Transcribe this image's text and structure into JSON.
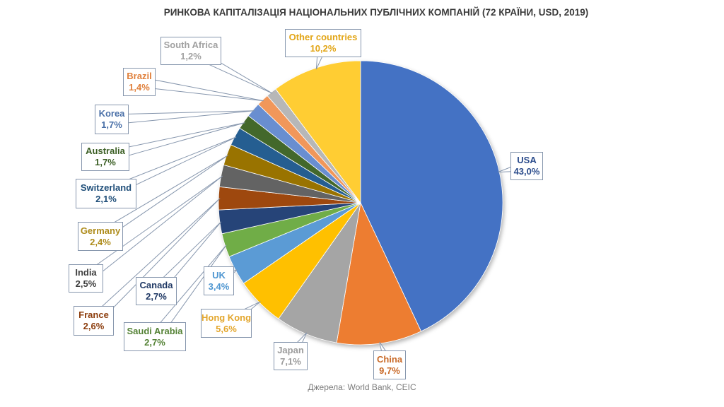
{
  "title": "РИНКОВА КАПІТАЛІЗАЦІЯ НАЦІОНАЛЬНИХ ПУБЛІЧНИХ КОМПАНІЙ (72 КРАЇНИ, USD, 2019)",
  "source": "Джерела: World Bank, CEIC",
  "chart_data": {
    "type": "pie",
    "title": "РИНКОВА КАПІТАЛІЗАЦІЯ НАЦІОНАЛЬНИХ ПУБЛІЧНИХ КОМПАНІЙ (72 КРАЇНИ, USD, 2019)",
    "source": "Джерела: World Bank, CEIC",
    "start_angle_deg": 0,
    "direction": "clockwise",
    "total": 100.0,
    "legend_position": "callout-labels",
    "slices": [
      {
        "label": "USA",
        "value": 43.0,
        "display": "43,0%",
        "color": "#4472C4",
        "text_color": "#2b4c8c"
      },
      {
        "label": "China",
        "value": 9.7,
        "display": "9,7%",
        "color": "#ED7D31",
        "text_color": "#c96a28"
      },
      {
        "label": "Japan",
        "value": 7.1,
        "display": "7,1%",
        "color": "#A5A5A5",
        "text_color": "#9b9b9b"
      },
      {
        "label": "Hong Kong",
        "value": 5.6,
        "display": "5,6%",
        "color": "#FFC000",
        "text_color": "#e3a62c"
      },
      {
        "label": "UK",
        "value": 3.4,
        "display": "3,4%",
        "color": "#5B9BD5",
        "text_color": "#4e96d1"
      },
      {
        "label": "Saudi Arabia",
        "value": 2.7,
        "display": "2,7%",
        "color": "#70AD47",
        "text_color": "#548235"
      },
      {
        "label": "Canada",
        "value": 2.7,
        "display": "2,7%",
        "color": "#264478",
        "text_color": "#1f3864"
      },
      {
        "label": "France",
        "value": 2.6,
        "display": "2,6%",
        "color": "#9E480E",
        "text_color": "#8c3d0d"
      },
      {
        "label": "India",
        "value": 2.5,
        "display": "2,5%",
        "color": "#636363",
        "text_color": "#3f3f3f"
      },
      {
        "label": "Germany",
        "value": 2.4,
        "display": "2,4%",
        "color": "#997300",
        "text_color": "#ae8c1c"
      },
      {
        "label": "Switzerland",
        "value": 2.1,
        "display": "2,1%",
        "color": "#255E91",
        "text_color": "#1f4e79"
      },
      {
        "label": "Australia",
        "value": 1.7,
        "display": "1,7%",
        "color": "#43682B",
        "text_color": "#3a5e23"
      },
      {
        "label": "Korea",
        "value": 1.7,
        "display": "1,7%",
        "color": "#698ED0",
        "text_color": "#4a70a8"
      },
      {
        "label": "Brazil",
        "value": 1.4,
        "display": "1,4%",
        "color": "#F1975A",
        "text_color": "#e0803c"
      },
      {
        "label": "South Africa",
        "value": 1.2,
        "display": "1,2%",
        "color": "#B7B7B7",
        "text_color": "#a1a1a1"
      },
      {
        "label": "Other countries",
        "value": 10.2,
        "display": "10,2%",
        "color": "#FFCD33",
        "text_color": "#e2a516"
      }
    ]
  }
}
